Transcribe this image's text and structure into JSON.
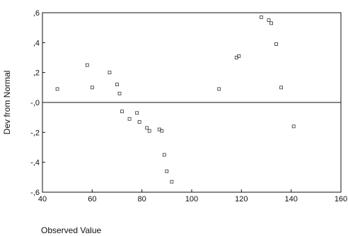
{
  "chart_data": {
    "type": "scatter",
    "title": "",
    "xlabel": "Observed Value",
    "ylabel": "Dev from Normal",
    "xlim": [
      40,
      160
    ],
    "ylim": [
      -0.6,
      0.6
    ],
    "x_ticks": [
      40,
      60,
      80,
      100,
      120,
      140,
      160
    ],
    "x_tick_labels": [
      "40",
      "60",
      "80",
      "100",
      "120",
      "140",
      "160"
    ],
    "y_ticks": [
      -0.6,
      -0.4,
      -0.2,
      0.0,
      0.2,
      0.4,
      0.6
    ],
    "y_tick_labels": [
      "-,6",
      "-,4",
      "-,2",
      "-,0",
      ",2",
      ",4",
      ",6"
    ],
    "grid": false,
    "reference_line_y": 0,
    "marker": "square-open",
    "colors": {
      "axis": "#111111",
      "marker": "#333333"
    },
    "series": [
      {
        "x": [
          46,
          58,
          60,
          67,
          70,
          71,
          72,
          75,
          78,
          79,
          82,
          83,
          87,
          88,
          89,
          90,
          92,
          111,
          118,
          119,
          128,
          131,
          132,
          134,
          136,
          141
        ],
        "y": [
          0.09,
          0.25,
          0.1,
          0.2,
          0.12,
          0.06,
          -0.06,
          -0.11,
          -0.07,
          -0.13,
          -0.17,
          -0.19,
          -0.18,
          -0.19,
          -0.35,
          -0.46,
          -0.53,
          0.09,
          0.3,
          0.31,
          0.57,
          0.55,
          0.53,
          0.39,
          0.1,
          -0.16
        ]
      }
    ]
  }
}
